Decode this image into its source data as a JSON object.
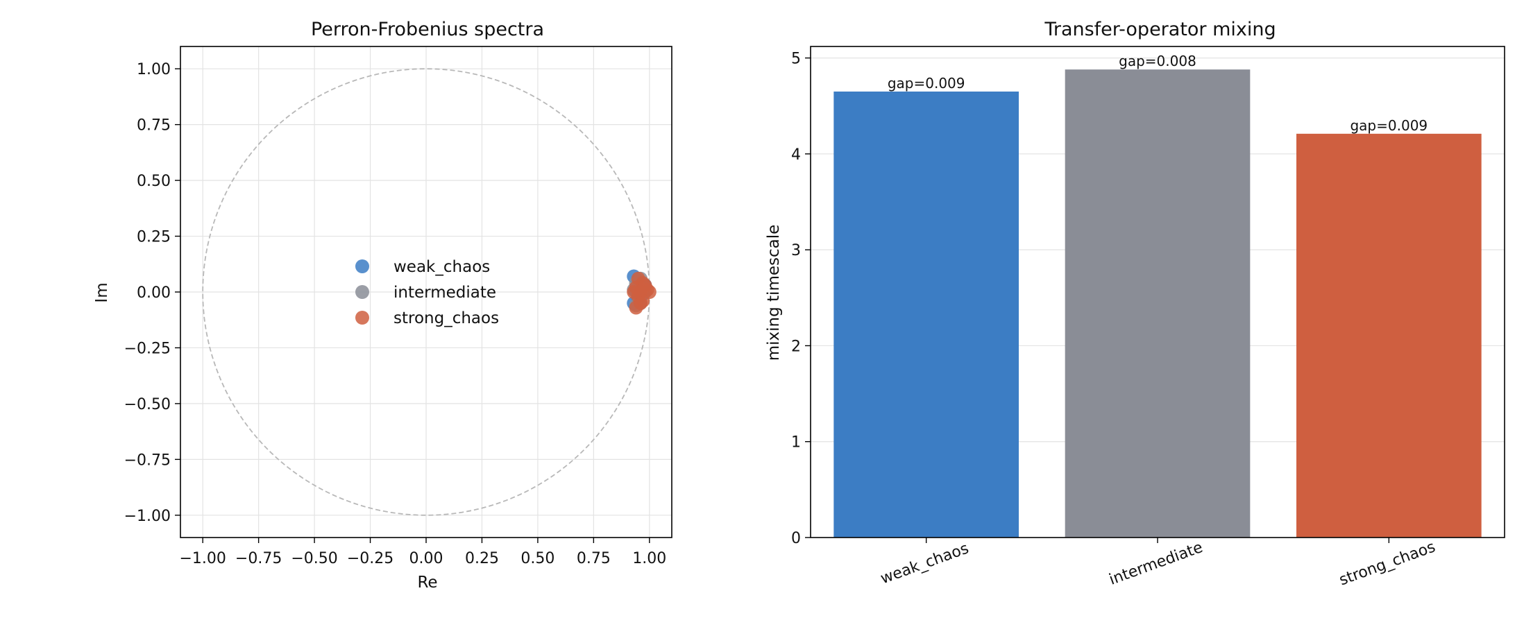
{
  "chart_data": [
    {
      "type": "scatter",
      "title": "Perron-Frobenius spectra",
      "xlabel": "Re",
      "ylabel": "Im",
      "xlim": [
        -1.1,
        1.1
      ],
      "ylim": [
        -1.1,
        1.1
      ],
      "xticks": [
        "−1.00",
        "−0.75",
        "−0.50",
        "−0.25",
        "0.00",
        "0.25",
        "0.50",
        "0.75",
        "1.00"
      ],
      "yticks": [
        "1.00",
        "0.75",
        "0.50",
        "0.25",
        "0.00",
        "−0.25",
        "−0.50",
        "−0.75",
        "−1.00"
      ],
      "grid": true,
      "unit_circle": true,
      "legend_position": "center",
      "series": [
        {
          "name": "weak_chaos",
          "color": "#3c7dc4",
          "points": [
            [
              0.93,
              0.07
            ],
            [
              0.95,
              0.05
            ],
            [
              0.96,
              0.02
            ],
            [
              0.94,
              0.0
            ],
            [
              0.95,
              -0.03
            ],
            [
              0.97,
              -0.01
            ],
            [
              0.93,
              -0.05
            ],
            [
              0.98,
              0.03
            ]
          ]
        },
        {
          "name": "intermediate",
          "color": "#8a8d96",
          "points": [
            [
              0.94,
              0.04
            ],
            [
              0.96,
              0.06
            ],
            [
              0.95,
              -0.02
            ],
            [
              0.93,
              0.01
            ],
            [
              0.96,
              -0.05
            ],
            [
              0.98,
              0.0
            ],
            [
              0.94,
              -0.06
            ]
          ]
        },
        {
          "name": "strong_chaos",
          "color": "#cf5f40",
          "points": [
            [
              0.95,
              0.06
            ],
            [
              0.97,
              0.04
            ],
            [
              0.94,
              0.02
            ],
            [
              0.96,
              0.0
            ],
            [
              0.99,
              0.01
            ],
            [
              1.0,
              0.0
            ],
            [
              0.95,
              -0.02
            ],
            [
              0.97,
              -0.04
            ],
            [
              0.94,
              -0.07
            ],
            [
              0.96,
              -0.05
            ],
            [
              0.98,
              0.03
            ],
            [
              0.93,
              0.0
            ]
          ]
        }
      ]
    },
    {
      "type": "bar",
      "title": "Transfer-operator mixing",
      "xlabel": "",
      "ylabel": "mixing timescale",
      "ylim": [
        0,
        5.12
      ],
      "yticks": [
        0,
        1,
        2,
        3,
        4,
        5
      ],
      "grid": true,
      "categories": [
        "weak_chaos",
        "intermediate",
        "strong_chaos"
      ],
      "values": [
        4.65,
        4.88,
        4.21
      ],
      "colors": [
        "#3c7dc4",
        "#8a8d96",
        "#cf5f40"
      ],
      "labels": [
        "gap=0.009",
        "gap=0.008",
        "gap=0.009"
      ]
    }
  ]
}
